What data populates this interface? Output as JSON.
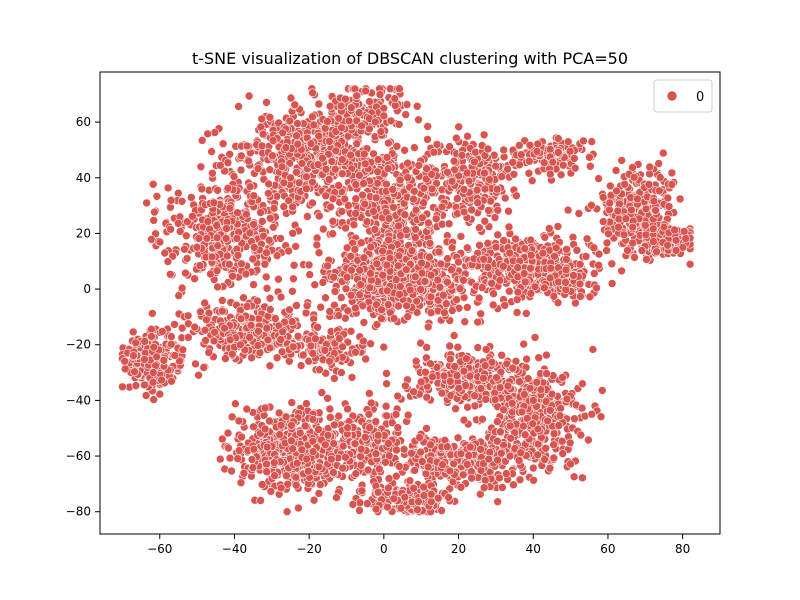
{
  "chart_data": {
    "type": "scatter",
    "title": "t-SNE visualization of DBSCAN clustering with PCA=50",
    "xlabel": "",
    "ylabel": "",
    "xlim": [
      -76,
      90
    ],
    "ylim": [
      -88,
      78
    ],
    "xticks": [
      -60,
      -40,
      -20,
      0,
      20,
      40,
      60,
      80
    ],
    "yticks": [
      -80,
      -60,
      -40,
      -20,
      0,
      20,
      40,
      60
    ],
    "grid": false,
    "legend": {
      "placement": "top-right",
      "entries": [
        {
          "label": "0",
          "color": "#d9534f"
        }
      ]
    },
    "colors": {
      "point_fill": "#d9534f",
      "point_edge": "#ffffff"
    },
    "series": [
      {
        "name": "0",
        "color": "#d9534f",
        "clusters": [
          {
            "cx": -20,
            "cy": 48,
            "sx": 14,
            "sy": 12,
            "n": 500
          },
          {
            "cx": -42,
            "cy": 20,
            "sx": 13,
            "sy": 13,
            "n": 420
          },
          {
            "cx": 2,
            "cy": 30,
            "sx": 13,
            "sy": 16,
            "n": 420
          },
          {
            "cx": -5,
            "cy": 65,
            "sx": 8,
            "sy": 6,
            "n": 120
          },
          {
            "cx": 5,
            "cy": 2,
            "sx": 13,
            "sy": 9,
            "n": 650
          },
          {
            "cx": 25,
            "cy": 40,
            "sx": 8,
            "sy": 10,
            "n": 200
          },
          {
            "cx": 38,
            "cy": 8,
            "sx": 12,
            "sy": 8,
            "n": 380
          },
          {
            "cx": 50,
            "cy": 3,
            "sx": 5,
            "sy": 4,
            "n": 80
          },
          {
            "cx": 45,
            "cy": 48,
            "sx": 8,
            "sy": 5,
            "n": 120
          },
          {
            "cx": 68,
            "cy": 28,
            "sx": 7,
            "sy": 11,
            "n": 260
          },
          {
            "cx": 77,
            "cy": 17,
            "sx": 5,
            "sy": 4,
            "n": 100
          },
          {
            "cx": -62,
            "cy": -25,
            "sx": 5,
            "sy": 7,
            "n": 240
          },
          {
            "cx": -35,
            "cy": -15,
            "sx": 12,
            "sy": 7,
            "n": 300
          },
          {
            "cx": -15,
            "cy": -22,
            "sx": 7,
            "sy": 5,
            "n": 120
          },
          {
            "cx": -25,
            "cy": -58,
            "sx": 11,
            "sy": 9,
            "n": 520
          },
          {
            "cx": -5,
            "cy": -55,
            "sx": 8,
            "sy": 10,
            "n": 180
          },
          {
            "cx": 22,
            "cy": -33,
            "sx": 10,
            "sy": 6,
            "n": 280
          },
          {
            "cx": 40,
            "cy": -45,
            "sx": 9,
            "sy": 12,
            "n": 380
          },
          {
            "cx": 20,
            "cy": -62,
            "sx": 11,
            "sy": 6,
            "n": 340
          },
          {
            "cx": 5,
            "cy": -75,
            "sx": 9,
            "sy": 4,
            "n": 180
          }
        ]
      }
    ]
  }
}
